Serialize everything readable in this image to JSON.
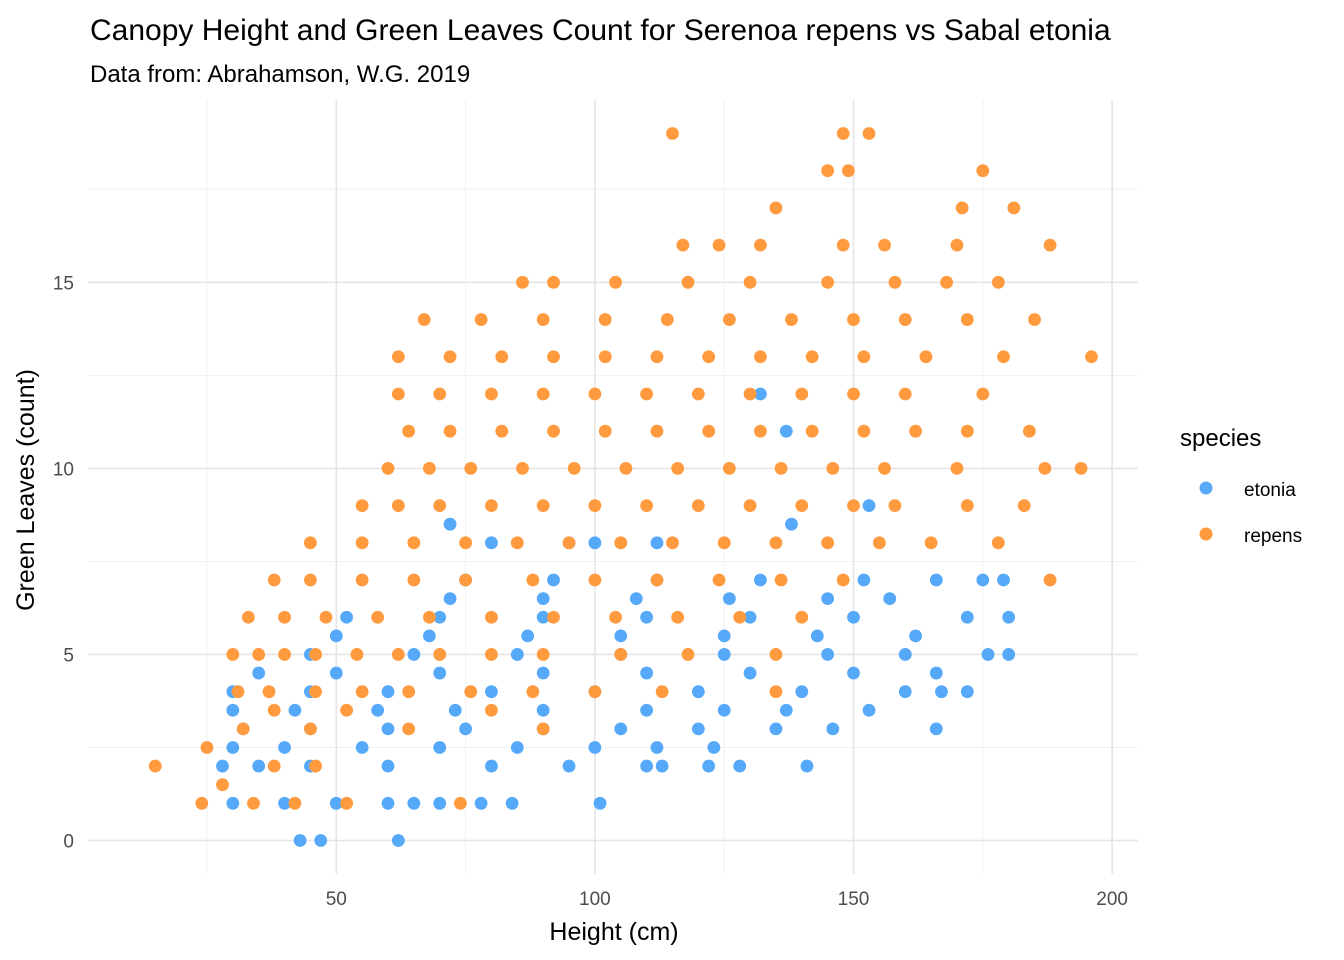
{
  "chart_data": {
    "type": "scatter",
    "title": "Canopy Height and Green Leaves Count for Serenoa repens vs Sabal etonia",
    "subtitle": "Data from: Abrahamson, W.G. 2019",
    "xlabel": "Height (cm)",
    "ylabel": "Green Leaves (count)",
    "xlim": [
      2,
      205
    ],
    "ylim": [
      -0.9,
      19.9
    ],
    "x_ticks": [
      50,
      100,
      150,
      200
    ],
    "x_minor_ticks": [
      25,
      75,
      125,
      175
    ],
    "y_ticks": [
      0,
      5,
      10,
      15
    ],
    "y_minor_ticks": [
      2.5,
      7.5,
      12.5,
      17.5
    ],
    "x_tick_labels": [
      "50",
      "100",
      "150",
      "200"
    ],
    "y_tick_labels": [
      "0",
      "5",
      "10",
      "15"
    ],
    "grid": true,
    "legend": {
      "title": "species",
      "position": "right"
    },
    "series": [
      {
        "name": "etonia",
        "color": "#56A9F8",
        "points": [
          [
            43,
            0
          ],
          [
            47,
            0
          ],
          [
            62,
            0
          ],
          [
            101,
            1
          ],
          [
            30,
            1
          ],
          [
            40,
            1
          ],
          [
            50,
            1
          ],
          [
            60,
            1
          ],
          [
            65,
            1
          ],
          [
            70,
            1
          ],
          [
            78,
            1
          ],
          [
            84,
            1
          ],
          [
            28,
            2
          ],
          [
            35,
            2
          ],
          [
            45,
            2
          ],
          [
            60,
            2
          ],
          [
            80,
            2
          ],
          [
            95,
            2
          ],
          [
            110,
            2
          ],
          [
            113,
            2
          ],
          [
            122,
            2
          ],
          [
            128,
            2
          ],
          [
            141,
            2
          ],
          [
            30,
            2.5
          ],
          [
            40,
            2.5
          ],
          [
            55,
            2.5
          ],
          [
            70,
            2.5
          ],
          [
            85,
            2.5
          ],
          [
            100,
            2.5
          ],
          [
            112,
            2.5
          ],
          [
            123,
            2.5
          ],
          [
            32,
            3
          ],
          [
            45,
            3
          ],
          [
            60,
            3
          ],
          [
            75,
            3
          ],
          [
            90,
            3
          ],
          [
            105,
            3
          ],
          [
            120,
            3
          ],
          [
            135,
            3
          ],
          [
            146,
            3
          ],
          [
            166,
            3
          ],
          [
            30,
            3.5
          ],
          [
            42,
            3.5
          ],
          [
            58,
            3.5
          ],
          [
            73,
            3.5
          ],
          [
            90,
            3.5
          ],
          [
            110,
            3.5
          ],
          [
            125,
            3.5
          ],
          [
            137,
            3.5
          ],
          [
            153,
            3.5
          ],
          [
            30,
            4
          ],
          [
            45,
            4
          ],
          [
            60,
            4
          ],
          [
            80,
            4
          ],
          [
            100,
            4
          ],
          [
            120,
            4
          ],
          [
            140,
            4
          ],
          [
            160,
            4
          ],
          [
            167,
            4
          ],
          [
            172,
            4
          ],
          [
            35,
            4.5
          ],
          [
            50,
            4.5
          ],
          [
            70,
            4.5
          ],
          [
            90,
            4.5
          ],
          [
            110,
            4.5
          ],
          [
            130,
            4.5
          ],
          [
            150,
            4.5
          ],
          [
            166,
            4.5
          ],
          [
            45,
            5
          ],
          [
            65,
            5
          ],
          [
            85,
            5
          ],
          [
            105,
            5
          ],
          [
            125,
            5
          ],
          [
            145,
            5
          ],
          [
            160,
            5
          ],
          [
            176,
            5
          ],
          [
            180,
            5
          ],
          [
            50,
            5.5
          ],
          [
            68,
            5.5
          ],
          [
            87,
            5.5
          ],
          [
            105,
            5.5
          ],
          [
            125,
            5.5
          ],
          [
            143,
            5.5
          ],
          [
            162,
            5.5
          ],
          [
            52,
            6
          ],
          [
            70,
            6
          ],
          [
            90,
            6
          ],
          [
            110,
            6
          ],
          [
            130,
            6
          ],
          [
            150,
            6
          ],
          [
            172,
            6
          ],
          [
            180,
            6
          ],
          [
            72,
            6.5
          ],
          [
            90,
            6.5
          ],
          [
            108,
            6.5
          ],
          [
            126,
            6.5
          ],
          [
            145,
            6.5
          ],
          [
            157,
            6.5
          ],
          [
            75,
            7
          ],
          [
            92,
            7
          ],
          [
            112,
            7
          ],
          [
            132,
            7
          ],
          [
            152,
            7
          ],
          [
            166,
            7
          ],
          [
            175,
            7
          ],
          [
            179,
            7
          ],
          [
            72,
            8.5
          ],
          [
            80,
            8
          ],
          [
            95,
            8
          ],
          [
            100,
            8
          ],
          [
            112,
            8
          ],
          [
            138,
            8.5
          ],
          [
            132,
            12
          ],
          [
            137,
            11
          ],
          [
            153,
            9
          ]
        ]
      },
      {
        "name": "repens",
        "color": "#FF9A3F",
        "points": [
          [
            15,
            2
          ],
          [
            24,
            1
          ],
          [
            28,
            1.5
          ],
          [
            34,
            1
          ],
          [
            38,
            2
          ],
          [
            42,
            1
          ],
          [
            46,
            2
          ],
          [
            52,
            1
          ],
          [
            74,
            1
          ],
          [
            25,
            2.5
          ],
          [
            32,
            3
          ],
          [
            38,
            3.5
          ],
          [
            45,
            3
          ],
          [
            52,
            3.5
          ],
          [
            64,
            3
          ],
          [
            80,
            3.5
          ],
          [
            90,
            3
          ],
          [
            31,
            4
          ],
          [
            37,
            4
          ],
          [
            46,
            4
          ],
          [
            55,
            4
          ],
          [
            64,
            4
          ],
          [
            76,
            4
          ],
          [
            88,
            4
          ],
          [
            100,
            4
          ],
          [
            113,
            4
          ],
          [
            135,
            4
          ],
          [
            30,
            5
          ],
          [
            35,
            5
          ],
          [
            40,
            5
          ],
          [
            46,
            5
          ],
          [
            54,
            5
          ],
          [
            62,
            5
          ],
          [
            70,
            5
          ],
          [
            80,
            5
          ],
          [
            90,
            5
          ],
          [
            105,
            5
          ],
          [
            118,
            5
          ],
          [
            135,
            5
          ],
          [
            33,
            6
          ],
          [
            40,
            6
          ],
          [
            48,
            6
          ],
          [
            58,
            6
          ],
          [
            68,
            6
          ],
          [
            80,
            6
          ],
          [
            92,
            6
          ],
          [
            104,
            6
          ],
          [
            116,
            6
          ],
          [
            128,
            6
          ],
          [
            140,
            6
          ],
          [
            38,
            7
          ],
          [
            45,
            7
          ],
          [
            55,
            7
          ],
          [
            65,
            7
          ],
          [
            75,
            7
          ],
          [
            88,
            7
          ],
          [
            100,
            7
          ],
          [
            112,
            7
          ],
          [
            124,
            7
          ],
          [
            136,
            7
          ],
          [
            148,
            7
          ],
          [
            188,
            7
          ],
          [
            45,
            8
          ],
          [
            55,
            8
          ],
          [
            65,
            8
          ],
          [
            75,
            8
          ],
          [
            85,
            8
          ],
          [
            95,
            8
          ],
          [
            105,
            8
          ],
          [
            115,
            8
          ],
          [
            125,
            8
          ],
          [
            135,
            8
          ],
          [
            145,
            8
          ],
          [
            155,
            8
          ],
          [
            165,
            8
          ],
          [
            178,
            8
          ],
          [
            55,
            9
          ],
          [
            62,
            9
          ],
          [
            70,
            9
          ],
          [
            80,
            9
          ],
          [
            90,
            9
          ],
          [
            100,
            9
          ],
          [
            110,
            9
          ],
          [
            120,
            9
          ],
          [
            130,
            9
          ],
          [
            140,
            9
          ],
          [
            150,
            9
          ],
          [
            158,
            9
          ],
          [
            172,
            9
          ],
          [
            183,
            9
          ],
          [
            60,
            10
          ],
          [
            68,
            10
          ],
          [
            76,
            10
          ],
          [
            86,
            10
          ],
          [
            96,
            10
          ],
          [
            106,
            10
          ],
          [
            116,
            10
          ],
          [
            126,
            10
          ],
          [
            136,
            10
          ],
          [
            146,
            10
          ],
          [
            156,
            10
          ],
          [
            170,
            10
          ],
          [
            187,
            10
          ],
          [
            194,
            10
          ],
          [
            64,
            11
          ],
          [
            72,
            11
          ],
          [
            82,
            11
          ],
          [
            92,
            11
          ],
          [
            102,
            11
          ],
          [
            112,
            11
          ],
          [
            122,
            11
          ],
          [
            132,
            11
          ],
          [
            142,
            11
          ],
          [
            152,
            11
          ],
          [
            162,
            11
          ],
          [
            172,
            11
          ],
          [
            184,
            11
          ],
          [
            62,
            12
          ],
          [
            70,
            12
          ],
          [
            80,
            12
          ],
          [
            90,
            12
          ],
          [
            100,
            12
          ],
          [
            110,
            12
          ],
          [
            120,
            12
          ],
          [
            130,
            12
          ],
          [
            140,
            12
          ],
          [
            150,
            12
          ],
          [
            160,
            12
          ],
          [
            175,
            12
          ],
          [
            62,
            13
          ],
          [
            72,
            13
          ],
          [
            82,
            13
          ],
          [
            92,
            13
          ],
          [
            102,
            13
          ],
          [
            112,
            13
          ],
          [
            122,
            13
          ],
          [
            132,
            13
          ],
          [
            142,
            13
          ],
          [
            152,
            13
          ],
          [
            164,
            13
          ],
          [
            179,
            13
          ],
          [
            196,
            13
          ],
          [
            67,
            14
          ],
          [
            78,
            14
          ],
          [
            90,
            14
          ],
          [
            102,
            14
          ],
          [
            114,
            14
          ],
          [
            126,
            14
          ],
          [
            138,
            14
          ],
          [
            150,
            14
          ],
          [
            160,
            14
          ],
          [
            172,
            14
          ],
          [
            185,
            14
          ],
          [
            86,
            15
          ],
          [
            92,
            15
          ],
          [
            104,
            15
          ],
          [
            118,
            15
          ],
          [
            130,
            15
          ],
          [
            145,
            15
          ],
          [
            158,
            15
          ],
          [
            168,
            15
          ],
          [
            178,
            15
          ],
          [
            117,
            16
          ],
          [
            124,
            16
          ],
          [
            132,
            16
          ],
          [
            148,
            16
          ],
          [
            156,
            16
          ],
          [
            170,
            16
          ],
          [
            188,
            16
          ],
          [
            135,
            17
          ],
          [
            171,
            17
          ],
          [
            181,
            17
          ],
          [
            145,
            18
          ],
          [
            149,
            18
          ],
          [
            175,
            18
          ],
          [
            115,
            19
          ],
          [
            148,
            19
          ],
          [
            153,
            19
          ]
        ]
      }
    ]
  }
}
